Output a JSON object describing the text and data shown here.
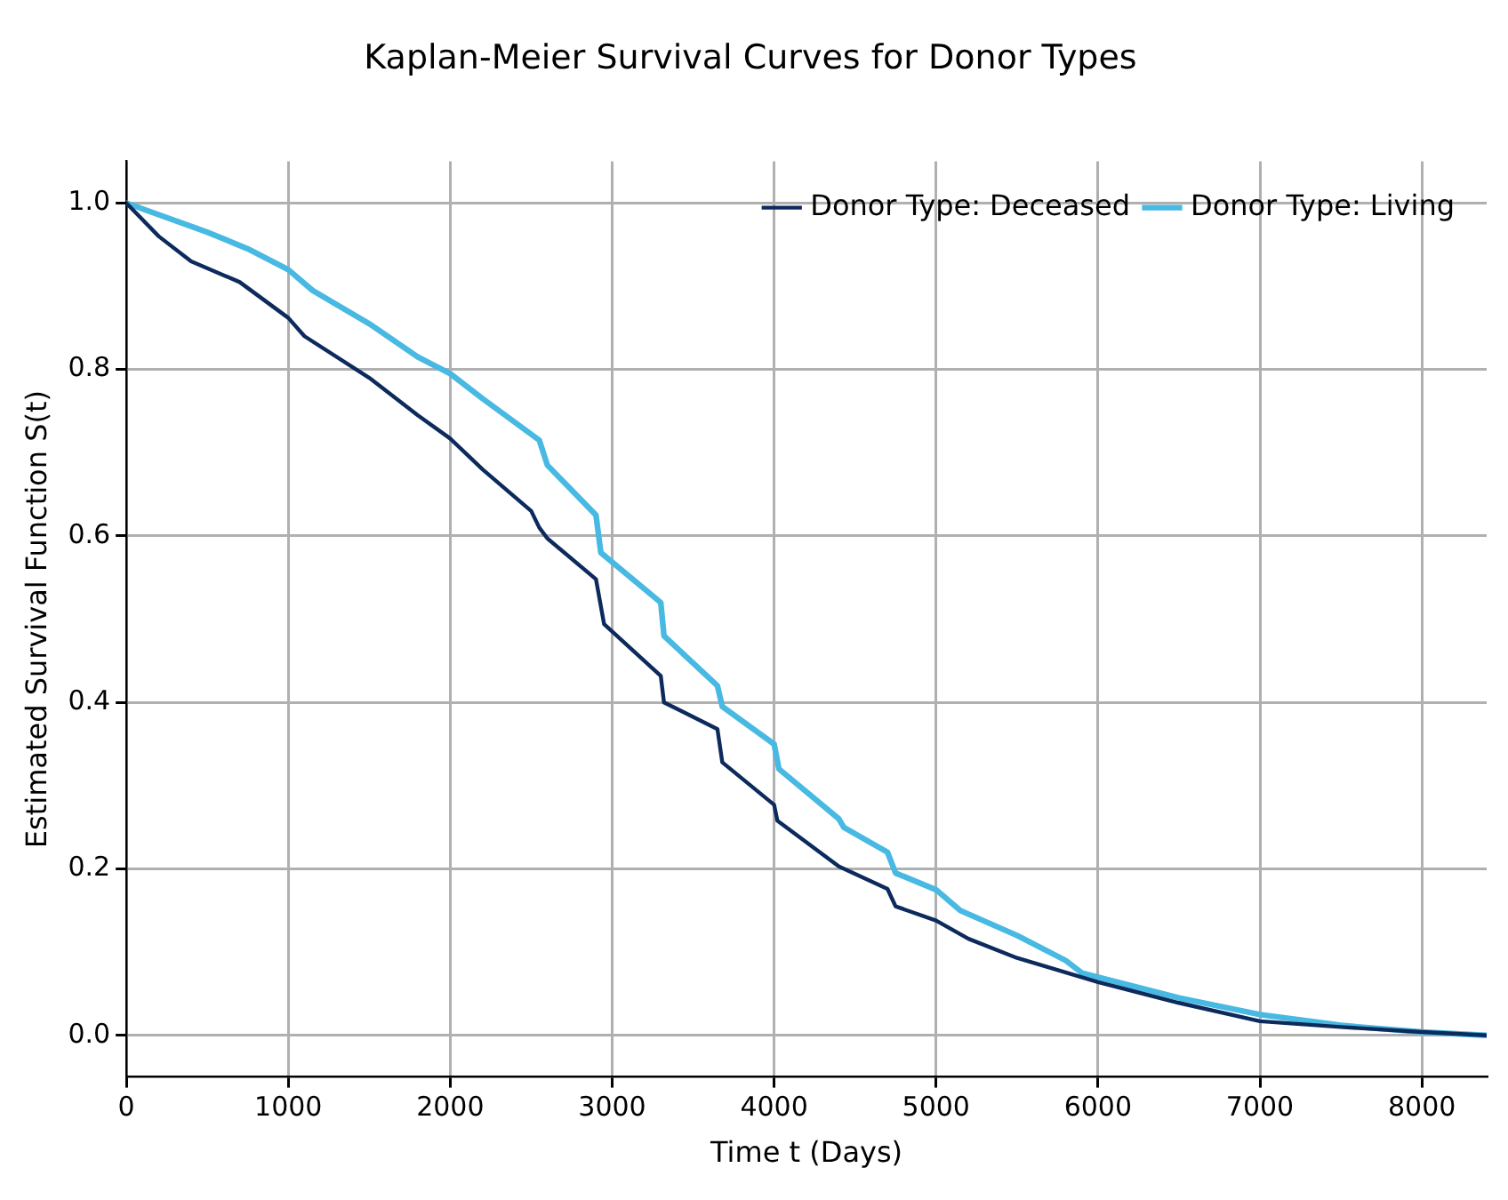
{
  "chart_data": {
    "type": "line",
    "title": "Kaplan-Meier Survival Curves for Donor Types",
    "xlabel": "Time t (Days)",
    "ylabel": "Estimated Survival Function S(t)",
    "xlim": [
      0,
      8400
    ],
    "ylim": [
      -0.05,
      1.05
    ],
    "xticks": [
      0,
      1000,
      2000,
      3000,
      4000,
      5000,
      6000,
      7000,
      8000
    ],
    "yticks": [
      {
        "value": 0,
        "label": "0.0"
      },
      {
        "value": 0.2,
        "label": "0.2"
      },
      {
        "value": 0.4,
        "label": "0.4"
      },
      {
        "value": 0.6,
        "label": "0.6"
      },
      {
        "value": 0.8,
        "label": "0.8"
      },
      {
        "value": 1,
        "label": "1.0"
      }
    ],
    "grid": true,
    "legend": "top right",
    "marker": "none",
    "line_style": "solid",
    "series": [
      {
        "name": "Donor Type: Deceased",
        "color": "#0c2a5c",
        "x": [
          0,
          200,
          400,
          700,
          1000,
          1100,
          1500,
          1800,
          2000,
          2200,
          2500,
          2550,
          2600,
          2900,
          2950,
          3300,
          3320,
          3650,
          3680,
          4000,
          4020,
          4400,
          4700,
          4750,
          5000,
          5200,
          5500,
          6000,
          6500,
          7000,
          7500,
          8000,
          8400
        ],
        "values": [
          1.0,
          0.96,
          0.93,
          0.905,
          0.862,
          0.84,
          0.79,
          0.745,
          0.717,
          0.68,
          0.63,
          0.61,
          0.597,
          0.548,
          0.494,
          0.432,
          0.4,
          0.368,
          0.328,
          0.277,
          0.258,
          0.203,
          0.176,
          0.155,
          0.138,
          0.116,
          0.093,
          0.064,
          0.039,
          0.017,
          0.01,
          0.004,
          0
        ]
      },
      {
        "name": "Donor Type: Living",
        "color": "#48b9e2",
        "x": [
          0,
          500,
          750,
          1000,
          1150,
          1500,
          1800,
          2000,
          2200,
          2550,
          2600,
          2900,
          2930,
          3300,
          3320,
          3650,
          3680,
          4000,
          4030,
          4400,
          4430,
          4700,
          4750,
          5000,
          5150,
          5500,
          5800,
          5900,
          6200,
          6500,
          7000,
          7500,
          8000,
          8400
        ],
        "values": [
          1.0,
          0.965,
          0.945,
          0.92,
          0.895,
          0.855,
          0.815,
          0.795,
          0.765,
          0.715,
          0.685,
          0.625,
          0.58,
          0.52,
          0.48,
          0.42,
          0.395,
          0.35,
          0.32,
          0.26,
          0.25,
          0.22,
          0.195,
          0.175,
          0.15,
          0.12,
          0.09,
          0.075,
          0.06,
          0.045,
          0.025,
          0.012,
          0.004,
          0
        ]
      }
    ]
  }
}
